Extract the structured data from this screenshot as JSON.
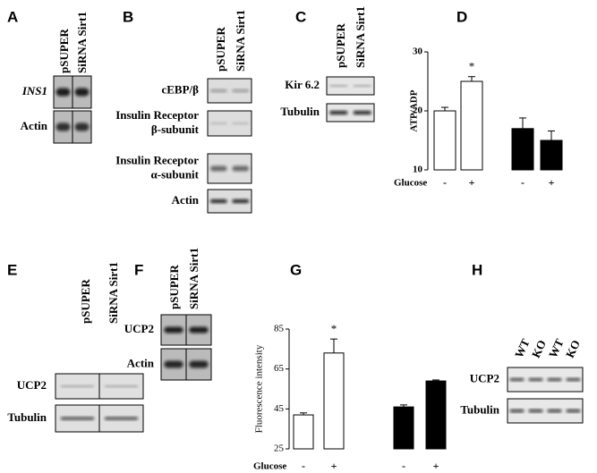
{
  "panels": [
    {
      "letter": "A",
      "columns": [
        "pSUPER",
        "SiRNA Sirt1"
      ],
      "rows": [
        [
          "INS1"
        ],
        [
          "Actin"
        ]
      ]
    },
    {
      "letter": "B",
      "columns": [
        "pSUPER",
        "SiRNA Sirt1"
      ],
      "rows": [
        [
          "cEBP/β"
        ],
        [
          "Insulin Receptor",
          "β-subunit"
        ],
        [
          "Insulin Receptor",
          "α-subunit"
        ],
        [
          "Actin"
        ]
      ]
    },
    {
      "letter": "C",
      "columns": [
        "pSUPER",
        "SiRNA Sirt1"
      ],
      "rows": [
        [
          "Kir 6.2"
        ],
        [
          "Tubulin"
        ]
      ]
    },
    {
      "letter": "E",
      "columns": [
        "pSUPER",
        "SiRNA Sirt1"
      ],
      "rows": [
        [
          "UCP2"
        ],
        [
          "Tubulin"
        ]
      ]
    },
    {
      "letter": "F",
      "columns": [
        "pSUPER",
        "SiRNA Sirt1"
      ],
      "rows": [
        [
          "UCP2"
        ],
        [
          "Actin"
        ]
      ]
    },
    {
      "letter": "H",
      "columns": [
        "WT",
        "KO",
        "WT",
        "KO"
      ],
      "rows": [
        [
          "UCP2"
        ],
        [
          "Tubulin"
        ]
      ]
    }
  ],
  "chart_data": [
    {
      "type": "bar",
      "panel_label": "D",
      "y_label": "ATP/ADP",
      "x_label": "Glucose",
      "annotation": "*",
      "categories": [
        "-",
        "+",
        "-",
        "+"
      ],
      "values": [
        20,
        25,
        17,
        15
      ],
      "errors": [
        0.6,
        0.8,
        1.8,
        1.6
      ],
      "colors": [
        "#ffffff",
        "#ffffff",
        "#000000",
        "#000000"
      ],
      "ylim": [
        10,
        30
      ],
      "yticks": [
        10,
        20,
        30
      ]
    },
    {
      "type": "bar",
      "panel_label": "G",
      "y_label": "Fluorescence intensity",
      "x_label": "Glucose",
      "annotation": "*",
      "categories": [
        "-",
        "+",
        "-",
        "+"
      ],
      "values": [
        42,
        73,
        46,
        59
      ],
      "errors": [
        1,
        7,
        1,
        0.5
      ],
      "colors": [
        "#ffffff",
        "#ffffff",
        "#000000",
        "#000000"
      ],
      "ylim": [
        25,
        85
      ],
      "yticks": [
        25,
        45,
        65,
        85
      ]
    }
  ]
}
